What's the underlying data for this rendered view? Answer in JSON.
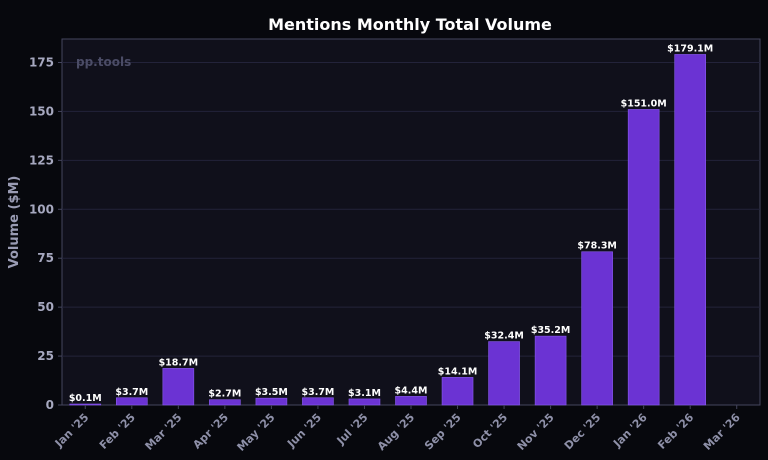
{
  "chart_data": {
    "type": "bar",
    "title": "Mentions Monthly Total Volume",
    "xlabel": "",
    "ylabel": "Volume ($M)",
    "watermark": "pp.tools",
    "ylim": [
      0,
      187
    ],
    "yticks": [
      0,
      25,
      50,
      75,
      100,
      125,
      150,
      175
    ],
    "categories": [
      "Jan '25",
      "Feb '25",
      "Mar '25",
      "Apr '25",
      "May '25",
      "Jun '25",
      "Jul '25",
      "Aug '25",
      "Sep '25",
      "Oct '25",
      "Nov '25",
      "Dec '25",
      "Jan '26",
      "Feb '26",
      "Mar '26"
    ],
    "values": [
      0.1,
      3.7,
      18.7,
      2.7,
      3.5,
      3.7,
      3.1,
      4.4,
      14.1,
      32.4,
      35.2,
      78.3,
      151.0,
      179.1,
      null
    ],
    "data_labels": [
      "$0.1M",
      "$3.7M",
      "$18.7M",
      "$2.7M",
      "$3.5M",
      "$3.7M",
      "$3.1M",
      "$4.4M",
      "$14.1M",
      "$32.4M",
      "$35.2M",
      "$78.3M",
      "$151.0M",
      "$179.1M",
      ""
    ],
    "grid": true,
    "colors": {
      "bar": "#6b33d3",
      "bar_edge": "#8a5cf0",
      "plot_bg": "#10101b",
      "grid": "#23233a",
      "axis": "#45465e"
    }
  }
}
